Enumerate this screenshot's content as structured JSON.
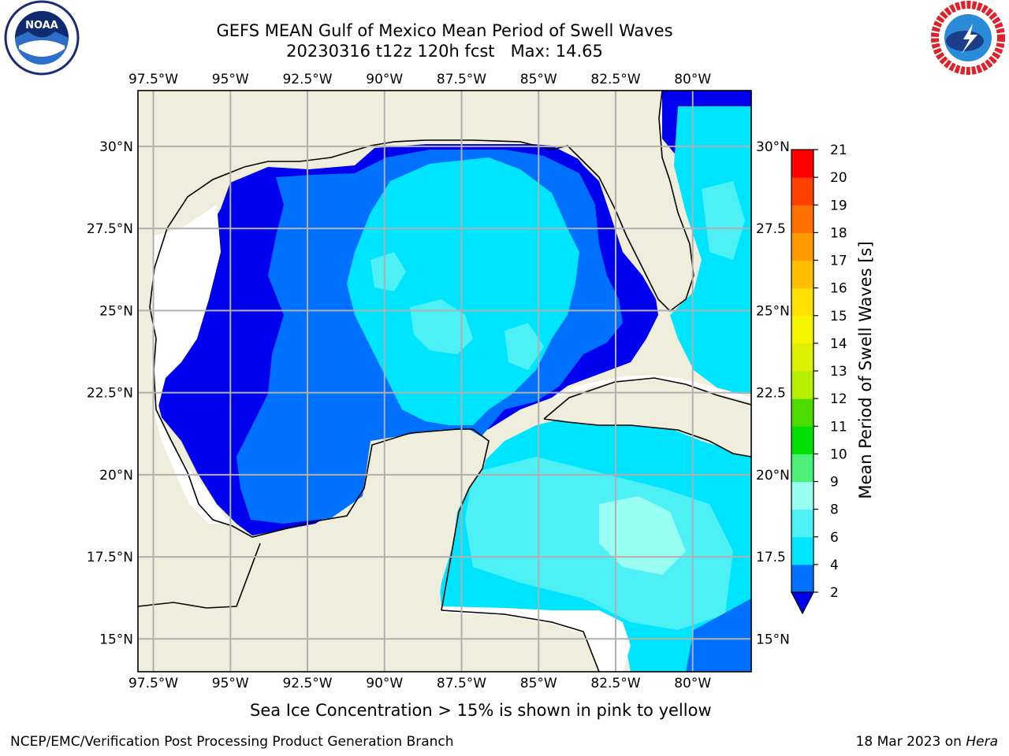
{
  "title_line1": "GEFS MEAN Gulf of Mexico Mean Period of Swell Waves",
  "title_line2": "20230316 t12z 120h fcst   Max: 14.65",
  "footnote": "Sea Ice Concentration > 15% is shown in pink to yellow",
  "credit_left": "NCEP/EMC/Verification Post Processing Product Generation Branch",
  "credit_date": "18 Mar 2023 on ",
  "credit_host": "Hera",
  "logos": {
    "left": "noaa-logo",
    "right": "nws-logo"
  },
  "colors": {
    "land": "#efeedc",
    "grid": "#b0b0b0",
    "coast": "#000000"
  },
  "chart_data": {
    "type": "heatmap",
    "title": "GEFS MEAN Gulf of Mexico Mean Period of Swell Waves",
    "xlabel": "",
    "ylabel": "",
    "x_ticks": [
      "97.5°W",
      "95°W",
      "92.5°W",
      "90°W",
      "87.5°W",
      "85°W",
      "82.5°W",
      "80°W"
    ],
    "x_values": [
      -97.5,
      -95,
      -92.5,
      -90,
      -87.5,
      -85,
      -82.5,
      -80
    ],
    "y_ticks_left": [
      "30°N",
      "27.5°N",
      "25°N",
      "22.5°N",
      "20°N",
      "17.5°N",
      "15°N"
    ],
    "y_ticks_right": [
      "30°N",
      "27.5",
      "25°N",
      "22.5",
      "20°N",
      "17.5",
      "15°N"
    ],
    "y_values": [
      30,
      27.5,
      25,
      22.5,
      20,
      17.5,
      15
    ],
    "xlim": [
      -98,
      -78.1
    ],
    "ylim": [
      14,
      31.7
    ],
    "grid": true,
    "max_value": 14.65,
    "colorbar": {
      "label": "Mean Period of Swell Waves [s]",
      "ticks": [
        2,
        4,
        6,
        8,
        9,
        10,
        11,
        12,
        13,
        14,
        15,
        16,
        17,
        18,
        19,
        20,
        21
      ],
      "levels": [
        {
          "from": 2,
          "to": 4,
          "color": "#0070ff"
        },
        {
          "from": 4,
          "to": 6,
          "color": "#00e5ff"
        },
        {
          "from": 6,
          "to": 8,
          "color": "#4cf0f5"
        },
        {
          "from": 8,
          "to": 9,
          "color": "#99fff0"
        },
        {
          "from": 9,
          "to": 10,
          "color": "#4cf078"
        },
        {
          "from": 10,
          "to": 11,
          "color": "#00e000"
        },
        {
          "from": 11,
          "to": 12,
          "color": "#4cdc00"
        },
        {
          "from": 12,
          "to": 13,
          "color": "#b4f000"
        },
        {
          "from": 13,
          "to": 14,
          "color": "#dcf000"
        },
        {
          "from": 14,
          "to": 15,
          "color": "#f5f500"
        },
        {
          "from": 15,
          "to": 16,
          "color": "#ffe000"
        },
        {
          "from": 16,
          "to": 17,
          "color": "#ffbe00"
        },
        {
          "from": 17,
          "to": 18,
          "color": "#ff9900"
        },
        {
          "from": 18,
          "to": 19,
          "color": "#ff7000"
        },
        {
          "from": 19,
          "to": 20,
          "color": "#ff4000"
        },
        {
          "from": 20,
          "to": 21,
          "color": "#ff0000"
        }
      ],
      "under_color": "#0000ee"
    }
  }
}
